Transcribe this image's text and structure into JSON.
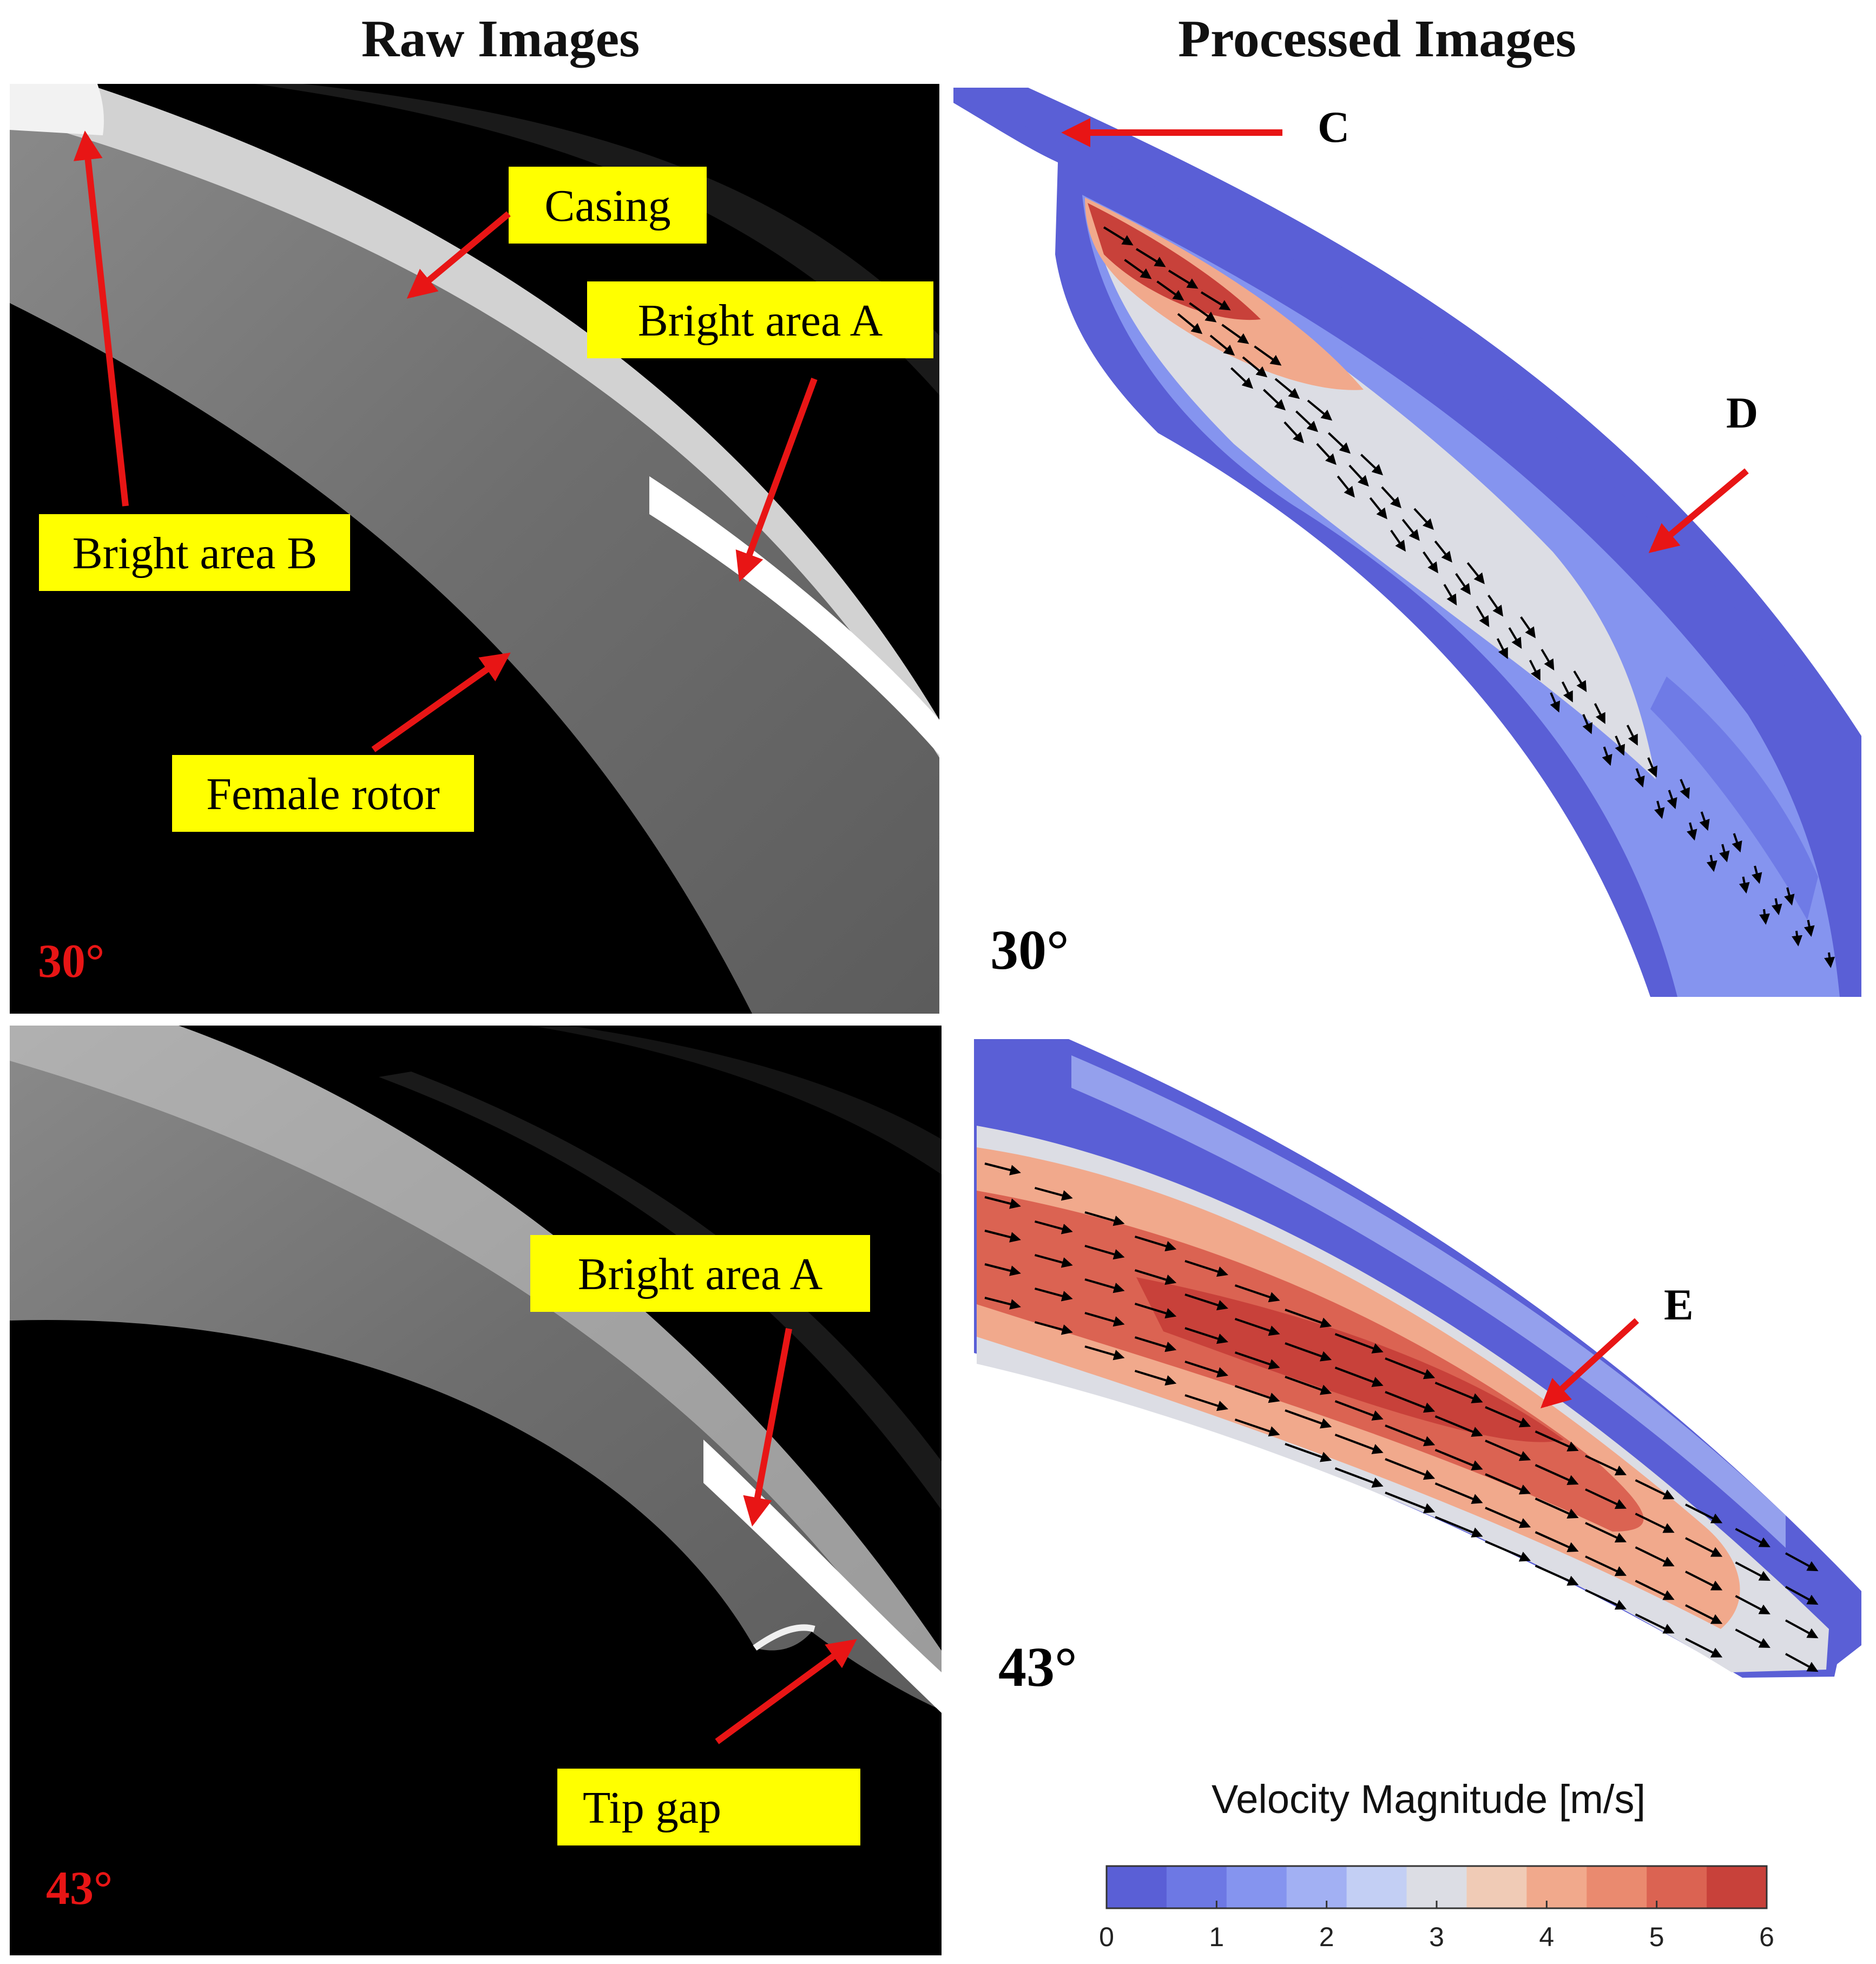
{
  "headers": {
    "raw": "Raw Images",
    "processed": "Processed Images"
  },
  "raw_panels": [
    {
      "angle": "30°",
      "callouts": [
        "Casing",
        "Bright area A",
        "Bright area B",
        "Female rotor"
      ]
    },
    {
      "angle": "43°",
      "callouts": [
        "Bright area A",
        "Tip gap"
      ]
    }
  ],
  "processed_panels": [
    {
      "angle": "30°",
      "points": [
        "C",
        "D"
      ]
    },
    {
      "angle": "43°",
      "points": [
        "E"
      ]
    }
  ],
  "colorbar": {
    "title": "Velocity Magnitude [m/s]",
    "range": [
      0,
      6
    ],
    "ticks": [
      "0",
      "1",
      "2",
      "3",
      "4",
      "5",
      "6"
    ],
    "colors": [
      "#5a5fd6",
      "#6d78e4",
      "#8594ef",
      "#a2b0f3",
      "#c3cff4",
      "#dcdde4",
      "#f0cbb6",
      "#f1a98c",
      "#ea8a6f",
      "#db6352",
      "#c8413a"
    ]
  },
  "colors": {
    "callout_fill": "#ffff00",
    "arrow": "#e81515",
    "angle_raw": "#e81515"
  }
}
